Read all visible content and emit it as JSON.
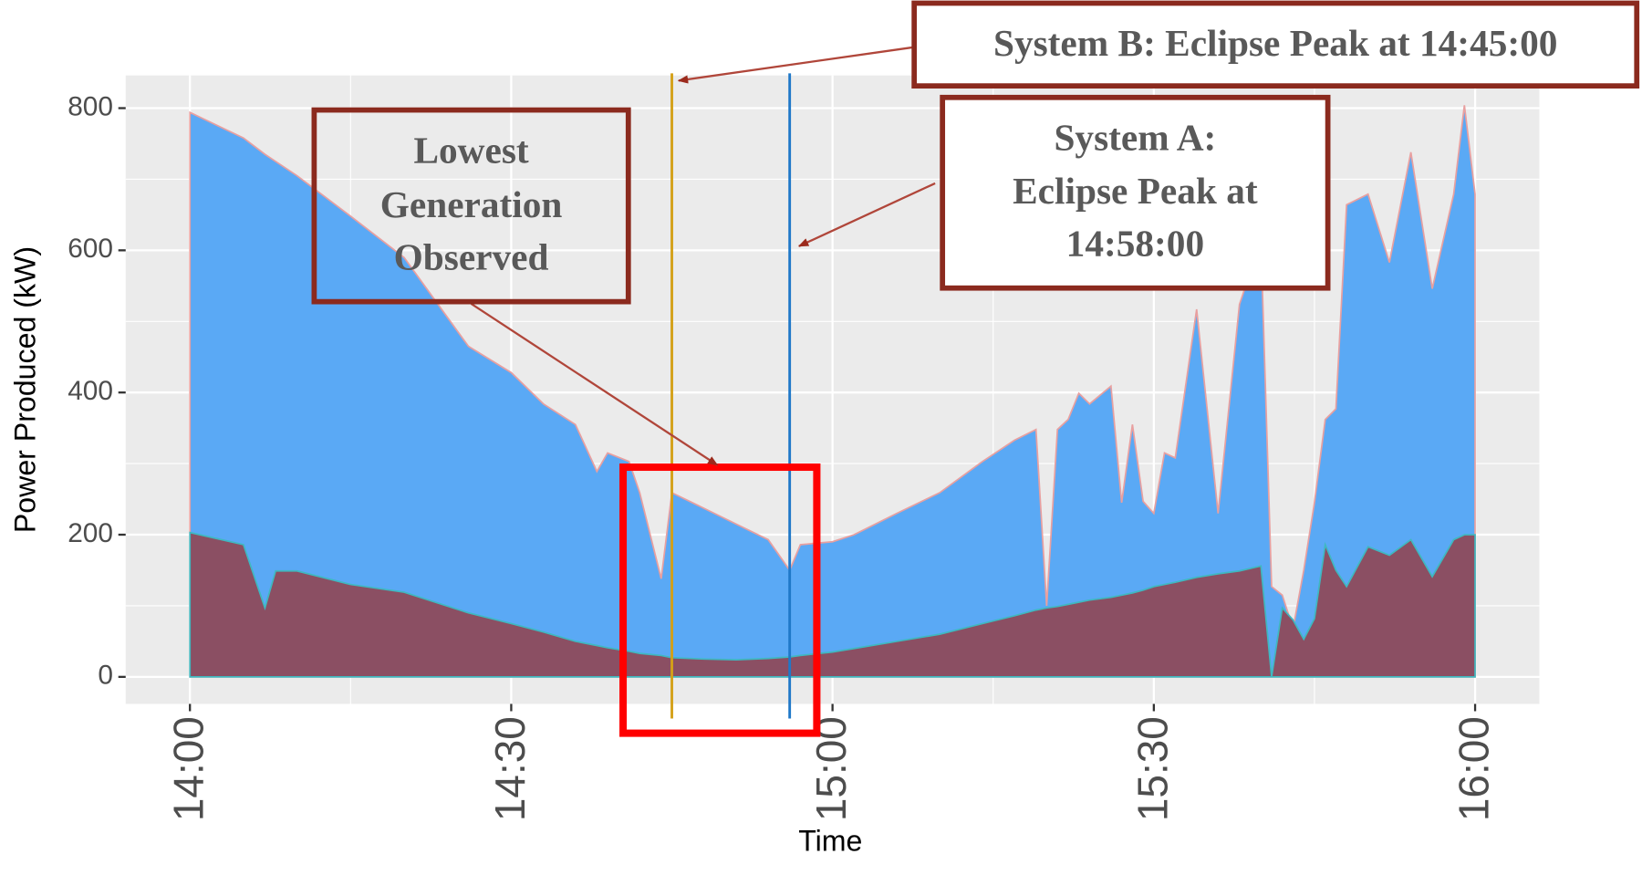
{
  "chart_data": {
    "type": "area",
    "x_label": "Time",
    "y_label": "Power Produced (kW)",
    "x": [
      "14:00",
      "14:05",
      "14:07",
      "14:08",
      "14:10",
      "14:15",
      "14:20",
      "14:26",
      "14:30",
      "14:33",
      "14:36",
      "14:38",
      "14:39",
      "14:41",
      "14:42",
      "14:44",
      "14:45",
      "14:48",
      "14:51",
      "14:54",
      "14:56",
      "14:57",
      "15:00",
      "15:02",
      "15:06",
      "15:10",
      "15:14",
      "15:17",
      "15:19",
      "15:20",
      "15:21",
      "15:22",
      "15:23",
      "15:24",
      "15:26",
      "15:27",
      "15:28",
      "15:29",
      "15:30",
      "15:31",
      "15:32",
      "15:34",
      "15:36",
      "15:38",
      "15:40",
      "15:41",
      "15:42",
      "15:43",
      "15:44",
      "15:45",
      "15:46",
      "15:47",
      "15:48",
      "15:50",
      "15:52",
      "15:54",
      "15:56",
      "15:58",
      "15:59",
      "16:00"
    ],
    "series": [
      {
        "name": "System A",
        "color": "#5aa9f5",
        "outline": "#e8a0a0",
        "values": [
          794,
          758,
          735,
          725,
          705,
          648,
          590,
          465,
          428,
          384,
          355,
          289,
          315,
          303,
          259,
          138,
          259,
          237,
          215,
          193,
          150,
          186,
          190,
          200,
          230,
          259,
          303,
          333,
          348,
          100,
          348,
          362,
          399,
          384,
          409,
          245,
          355,
          247,
          230,
          315,
          308,
          517,
          230,
          524,
          613,
          127,
          115,
          68,
          150,
          245,
          362,
          377,
          664,
          679,
          583,
          738,
          546,
          679,
          804,
          679
        ]
      },
      {
        "name": "System B",
        "color": "#8b4f63",
        "outline": "#3fb8c0",
        "values": [
          203,
          186,
          97,
          149,
          149,
          130,
          119,
          90,
          75,
          63,
          50,
          44,
          41,
          36,
          33,
          30,
          27,
          25,
          24,
          26,
          28,
          30,
          35,
          40,
          50,
          60,
          75,
          86,
          94,
          97,
          99,
          102,
          105,
          108,
          112,
          115,
          118,
          122,
          127,
          130,
          133,
          140,
          145,
          149,
          156,
          0,
          97,
          80,
          53,
          82,
          186,
          150,
          127,
          183,
          171,
          193,
          141,
          193,
          200,
          200
        ]
      }
    ],
    "xlim": [
      "13:54",
      "16:06"
    ],
    "xticks": [
      "14:00",
      "14:30",
      "15:00",
      "15:30",
      "16:00"
    ],
    "x_minor_ticks": [
      "14:15",
      "14:45",
      "15:15",
      "15:45"
    ],
    "ylim": [
      -38,
      846
    ],
    "yticks": [
      0,
      200,
      400,
      600,
      800
    ],
    "y_minor_ticks": [
      100,
      300,
      500,
      700
    ],
    "grid": true,
    "vlines": [
      {
        "x": "14:45",
        "color": "#d4a017"
      },
      {
        "x": "14:56",
        "color": "#1f78c8"
      }
    ],
    "annotations": [
      {
        "lines": [
          "System B: Eclipse Peak at 14:45:00"
        ]
      },
      {
        "lines": [
          "System A:",
          "Eclipse Peak at",
          "14:58:00"
        ]
      },
      {
        "lines": [
          "Lowest",
          "Generation",
          "Observed"
        ]
      }
    ]
  }
}
